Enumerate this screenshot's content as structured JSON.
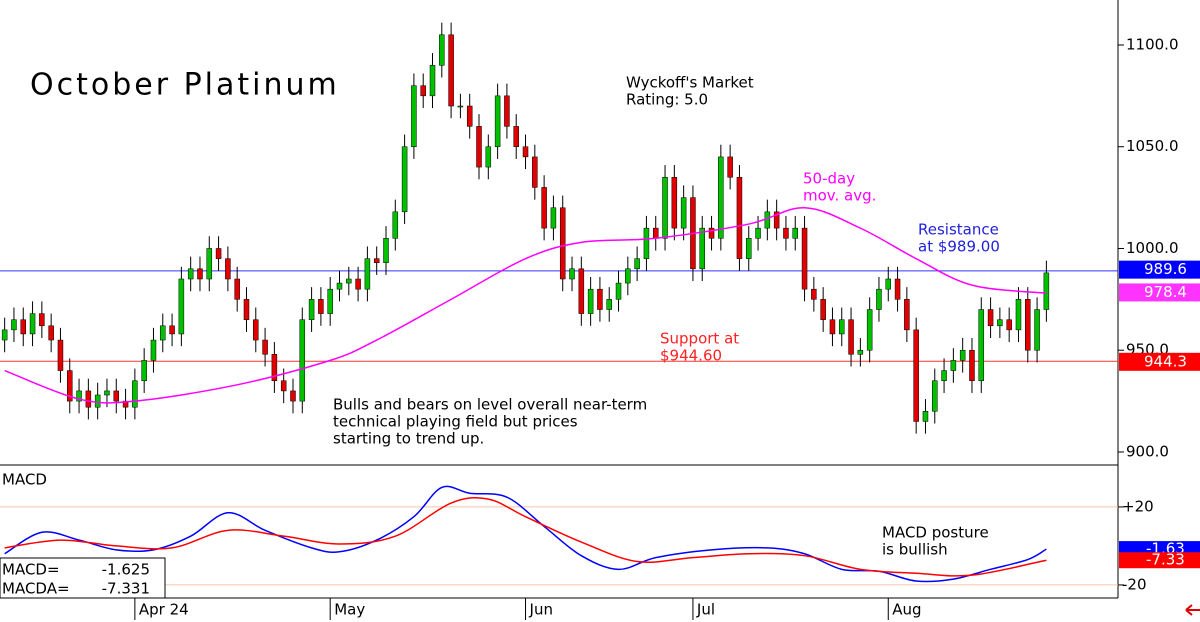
{
  "chart_data": {
    "type": "candlestick",
    "title": "October Platinum",
    "annotations": {
      "rating": [
        "Wyckoff's Market",
        "Rating: 5.0"
      ],
      "ma_label": [
        "50-day",
        "mov. avg."
      ],
      "resistance": [
        "Resistance",
        "at $989.00"
      ],
      "support": [
        "Support at",
        "$944.60"
      ],
      "commentary": [
        "Bulls and bears on level overall near-term",
        "technical playing field but prices",
        "starting to trend up."
      ],
      "macd_note": [
        "MACD posture",
        "is bullish"
      ]
    },
    "categories": [
      null,
      null,
      null,
      null,
      null,
      null,
      null,
      null,
      null,
      null,
      null,
      null,
      null,
      null,
      "Apr 24",
      null,
      null,
      null,
      null,
      null,
      null,
      null,
      null,
      null,
      null,
      null,
      null,
      null,
      null,
      null,
      null,
      null,
      null,
      null,
      null,
      "May",
      null,
      null,
      null,
      null,
      null,
      null,
      null,
      null,
      null,
      null,
      null,
      null,
      null,
      null,
      null,
      null,
      null,
      null,
      null,
      null,
      "Jun",
      null,
      null,
      null,
      null,
      null,
      null,
      null,
      null,
      null,
      null,
      null,
      null,
      null,
      null,
      null,
      null,
      null,
      "Jul",
      null,
      null,
      null,
      null,
      null,
      null,
      null,
      null,
      null,
      null,
      null,
      null,
      null,
      null,
      null,
      null,
      null,
      null,
      null,
      null,
      "Aug",
      null,
      null,
      null,
      null,
      null,
      null,
      null,
      null,
      null,
      null,
      null,
      null,
      null,
      null,
      null,
      null,
      null
    ],
    "xlim": [
      -0.5,
      119.7
    ],
    "open": [
      955,
      960,
      965,
      958,
      968,
      962,
      955,
      940,
      925,
      930,
      922,
      928,
      930,
      925,
      922,
      935,
      945,
      955,
      962,
      958,
      985,
      990,
      985,
      1000,
      995,
      985,
      975,
      965,
      955,
      948,
      935,
      930,
      925,
      965,
      975,
      968,
      980,
      983,
      985,
      980,
      995,
      993,
      1005,
      1018,
      1050,
      1080,
      1075,
      1090,
      1105,
      1070,
      1070,
      1060,
      1040,
      1050,
      1075,
      1060,
      1050,
      1045,
      1030,
      1010,
      1020,
      985,
      990,
      968,
      980,
      970,
      975,
      983,
      990,
      995,
      1010,
      1005,
      1035,
      1010,
      1025,
      990,
      1010,
      1005,
      1045,
      1035,
      995,
      1005,
      1010,
      1018,
      1010,
      1005,
      1010,
      980,
      975,
      965,
      958,
      965,
      948,
      950,
      970,
      980,
      985,
      975,
      960,
      915,
      920,
      935,
      940,
      945,
      950,
      935,
      970,
      962,
      965,
      960,
      975,
      950,
      970
    ],
    "high": [
      966,
      971,
      971,
      974,
      974,
      968,
      961,
      946,
      936,
      936,
      934,
      936,
      936,
      931,
      941,
      951,
      961,
      968,
      968,
      991,
      996,
      996,
      1006,
      1006,
      1001,
      991,
      981,
      971,
      961,
      954,
      941,
      936,
      971,
      981,
      981,
      986,
      989,
      991,
      991,
      1001,
      1001,
      1011,
      1024,
      1056,
      1086,
      1086,
      1096,
      1111,
      1111,
      1076,
      1076,
      1066,
      1056,
      1081,
      1081,
      1066,
      1056,
      1051,
      1036,
      1026,
      1026,
      996,
      996,
      986,
      986,
      981,
      989,
      996,
      1001,
      1016,
      1016,
      1041,
      1041,
      1031,
      1031,
      1016,
      1016,
      1051,
      1051,
      1041,
      1011,
      1016,
      1024,
      1024,
      1016,
      1016,
      1016,
      986,
      981,
      971,
      971,
      971,
      956,
      976,
      986,
      991,
      991,
      981,
      966,
      926,
      941,
      946,
      951,
      956,
      956,
      976,
      976,
      971,
      971,
      981,
      981,
      976,
      994
    ],
    "low": [
      949,
      954,
      952,
      952,
      956,
      949,
      934,
      919,
      919,
      916,
      916,
      922,
      919,
      916,
      916,
      929,
      939,
      949,
      952,
      952,
      979,
      979,
      979,
      989,
      979,
      969,
      959,
      949,
      942,
      929,
      924,
      919,
      919,
      959,
      962,
      962,
      974,
      977,
      974,
      974,
      987,
      987,
      999,
      1012,
      1044,
      1069,
      1069,
      1084,
      1064,
      1064,
      1054,
      1034,
      1034,
      1044,
      1054,
      1044,
      1039,
      1024,
      1004,
      1004,
      979,
      979,
      962,
      962,
      964,
      964,
      969,
      977,
      984,
      989,
      999,
      999,
      1004,
      1004,
      984,
      984,
      999,
      999,
      1029,
      989,
      989,
      999,
      1004,
      1004,
      999,
      999,
      974,
      969,
      959,
      952,
      952,
      942,
      942,
      944,
      964,
      974,
      969,
      954,
      909,
      909,
      914,
      929,
      934,
      939,
      929,
      929,
      956,
      956,
      954,
      954,
      944,
      944,
      964
    ],
    "close": [
      960,
      965,
      958,
      968,
      962,
      955,
      940,
      925,
      930,
      922,
      928,
      930,
      925,
      922,
      935,
      945,
      955,
      962,
      958,
      985,
      990,
      985,
      1000,
      995,
      985,
      975,
      965,
      955,
      948,
      935,
      930,
      925,
      965,
      975,
      968,
      980,
      983,
      985,
      980,
      995,
      993,
      1005,
      1018,
      1050,
      1080,
      1075,
      1090,
      1105,
      1070,
      1070,
      1060,
      1040,
      1050,
      1075,
      1060,
      1050,
      1045,
      1030,
      1010,
      1020,
      985,
      990,
      968,
      980,
      970,
      975,
      983,
      990,
      995,
      1010,
      1005,
      1035,
      1010,
      1025,
      990,
      1010,
      1005,
      1045,
      1035,
      995,
      1005,
      1010,
      1018,
      1010,
      1005,
      1010,
      980,
      975,
      965,
      958,
      965,
      948,
      950,
      970,
      980,
      985,
      975,
      960,
      915,
      920,
      935,
      940,
      945,
      950,
      935,
      970,
      962,
      965,
      960,
      975,
      950,
      970,
      988
    ],
    "up_color": "#00c000",
    "down_color": "#e00000",
    "ylim": [
      893.6,
      1122.1
    ],
    "yticks": [
      {
        "value": 900,
        "label": "900.0"
      },
      {
        "value": 950,
        "label": "950.0"
      },
      {
        "value": 1000,
        "label": "1000.0"
      },
      {
        "value": 1050,
        "label": "1050.0"
      },
      {
        "value": 1100,
        "label": "1100.0"
      }
    ],
    "moving_average": {
      "color": "#ff00ff",
      "x": [
        0,
        8,
        14,
        25,
        35,
        40,
        48,
        56,
        62,
        70,
        80,
        86,
        92,
        98,
        104,
        112
      ],
      "values": [
        940,
        926,
        925,
        933,
        945,
        955,
        975,
        995,
        1003,
        1005,
        1012,
        1020,
        1010,
        995,
        982,
        978
      ]
    },
    "levels": [
      {
        "value": 989,
        "color": "#3333ff"
      },
      {
        "value": 944.6,
        "color": "#ff3333"
      }
    ],
    "price_tags": [
      {
        "value": 989.6,
        "color": "#0000ff"
      },
      {
        "value": 978.4,
        "color": "#ff33ff"
      },
      {
        "value": 944.3,
        "color": "#ff0000"
      }
    ],
    "macd": {
      "label": "MACD",
      "y2lim": [
        -26.7,
        41.5
      ],
      "y2ticks": [
        {
          "value": 20,
          "label": "+20"
        },
        -20
      ],
      "series": [
        {
          "name": "MACD=",
          "color": "#0000ff",
          "axis": "y2",
          "last": -1.625,
          "tag_label": "-1.63",
          "x": [
            0,
            4,
            8,
            12,
            16,
            20,
            24,
            28,
            33,
            36,
            40,
            44,
            47,
            50,
            54,
            58,
            62,
            66,
            70,
            76,
            82,
            86,
            90,
            94,
            98,
            102,
            106,
            110,
            112
          ],
          "values": [
            -4,
            7,
            3,
            -2,
            -2,
            5,
            17,
            8,
            -1,
            -3,
            3,
            15,
            30,
            27,
            25,
            10,
            -5,
            -12,
            -6,
            -2,
            -1,
            -4,
            -12,
            -13,
            -18,
            -17,
            -12,
            -7,
            -1.625
          ]
        },
        {
          "name": "MACDA=",
          "color": "#ff0000",
          "axis": "y2",
          "last": -7.331,
          "tag_label": "-7.33",
          "x": [
            0,
            6,
            12,
            18,
            24,
            30,
            36,
            42,
            48,
            52,
            56,
            62,
            68,
            74,
            80,
            86,
            92,
            98,
            104,
            112
          ],
          "values": [
            -1,
            3,
            0,
            -1,
            8,
            5,
            1,
            5,
            22,
            24,
            15,
            2,
            -8,
            -6,
            -4,
            -5,
            -12,
            -14,
            -15,
            -7.331
          ]
        }
      ]
    }
  }
}
